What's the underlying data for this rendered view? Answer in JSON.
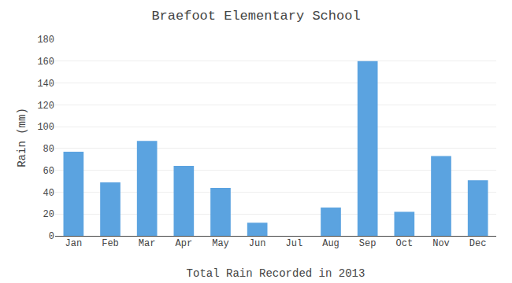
{
  "chart_data": {
    "type": "bar",
    "title": "Braefoot Elementary School",
    "xlabel": "Total Rain Recorded in 2013",
    "ylabel": "Rain (mm)",
    "categories": [
      "Jan",
      "Feb",
      "Mar",
      "Apr",
      "May",
      "Jun",
      "Jul",
      "Aug",
      "Sep",
      "Oct",
      "Nov",
      "Dec"
    ],
    "values": [
      77,
      49,
      87,
      64,
      44,
      12,
      0,
      26,
      160,
      22,
      73,
      51
    ],
    "color": "#5ba3e0",
    "ylim": [
      0,
      180
    ],
    "yticks": [
      0,
      20,
      40,
      60,
      80,
      100,
      120,
      140,
      160,
      180
    ],
    "grid": true
  }
}
